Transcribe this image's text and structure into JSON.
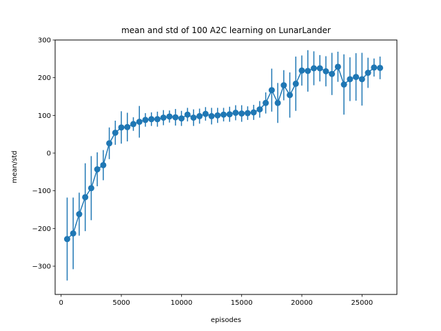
{
  "chart_data": {
    "type": "line",
    "title": "mean and std of 100 A2C learning on LunarLander",
    "xlabel": "episodes",
    "ylabel": "mean/std",
    "xlim": [
      -500,
      27900
    ],
    "ylim": [
      -375,
      300
    ],
    "xticks": [
      0,
      5000,
      10000,
      15000,
      20000,
      25000
    ],
    "yticks": [
      -300,
      -200,
      -100,
      0,
      100,
      200,
      300
    ],
    "grid": false,
    "color": "#1f77b4",
    "series": [
      {
        "x": [
          500,
          1000,
          1500,
          2000,
          2500,
          3000,
          3500,
          4000,
          4500,
          5000,
          5500,
          6000,
          6500,
          7000,
          7500,
          8000,
          8500,
          9000,
          9500,
          10000,
          10500,
          11000,
          11500,
          12000,
          12500,
          13000,
          13500,
          14000,
          14500,
          15000,
          15500,
          16000,
          16500,
          17000,
          17500,
          18000,
          18500,
          19000,
          19500,
          20000,
          20500,
          21000,
          21500,
          22000,
          22500,
          23000,
          23500,
          24000,
          24500,
          25000,
          25500,
          26000,
          26500
        ],
        "mean": [
          -228,
          -213,
          -162,
          -117,
          -93,
          -43,
          -32,
          26,
          54,
          68,
          69,
          77,
          83,
          88,
          90,
          90,
          94,
          97,
          95,
          92,
          102,
          94,
          98,
          104,
          98,
          100,
          102,
          103,
          107,
          105,
          106,
          108,
          116,
          133,
          167,
          133,
          180,
          154,
          184,
          219,
          218,
          225,
          225,
          217,
          210,
          229,
          182,
          196,
          202,
          196,
          213,
          227,
          226
        ],
        "std": [
          110,
          95,
          57,
          90,
          85,
          45,
          40,
          42,
          32,
          43,
          38,
          18,
          42,
          18,
          18,
          20,
          20,
          16,
          22,
          20,
          18,
          22,
          20,
          18,
          22,
          20,
          18,
          20,
          20,
          22,
          18,
          20,
          22,
          28,
          57,
          53,
          40,
          60,
          72,
          40,
          55,
          45,
          35,
          40,
          56,
          40,
          80,
          58,
          63,
          70,
          40,
          24,
          30
        ]
      }
    ]
  }
}
